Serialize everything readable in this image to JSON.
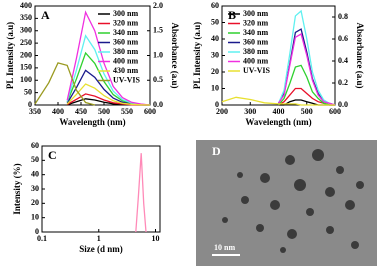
{
  "chart_data": [
    {
      "type": "line",
      "panel_label": "A",
      "xlabel": "Wavelength (nm)",
      "ylabel": "PL Intensity (a.u)",
      "y2label": "Absorbance (a.u)",
      "x": [
        350,
        380,
        400,
        420,
        440,
        460,
        480,
        500,
        520,
        540,
        560,
        580,
        600
      ],
      "xlim": [
        350,
        600
      ],
      "xticks": [
        350,
        400,
        450,
        500,
        550,
        600
      ],
      "ylim": [
        0,
        400
      ],
      "yticks": [
        0,
        50,
        100,
        150,
        200,
        250,
        300,
        350,
        400
      ],
      "y2lim": [
        0,
        2
      ],
      "y2ticks": [
        {
          "value": 0,
          "label": "0.0"
        },
        0.5,
        {
          "value": 1,
          "label": "1.0"
        },
        1.5,
        {
          "value": 2,
          "label": "2.0"
        }
      ],
      "legend": "upper right",
      "series": [
        {
          "name": "300 nm",
          "color": "#000000",
          "values": [
            null,
            null,
            null,
            1,
            13,
            25,
            20,
            11,
            5,
            2,
            1,
            0,
            0
          ]
        },
        {
          "name": "320 nm",
          "color": "#e8102a",
          "values": [
            null,
            null,
            null,
            2,
            23,
            45,
            36,
            20,
            9,
            4,
            1,
            0,
            0
          ]
        },
        {
          "name": "340 nm",
          "color": "#2fd12f",
          "values": [
            null,
            null,
            null,
            11,
            105,
            210,
            168,
            95,
            42,
            17,
            6,
            2,
            0
          ]
        },
        {
          "name": "360 nm",
          "color": "#1a1a8c",
          "values": [
            null,
            null,
            null,
            7,
            70,
            140,
            112,
            63,
            28,
            11,
            4,
            1,
            0
          ]
        },
        {
          "name": "380 nm",
          "color": "#5ff0f0",
          "values": [
            null,
            null,
            null,
            14,
            140,
            280,
            224,
            126,
            56,
            22,
            8,
            3,
            0
          ]
        },
        {
          "name": "400 nm",
          "color": "#f030e0",
          "values": [
            null,
            null,
            null,
            19,
            188,
            375,
            300,
            169,
            75,
            30,
            11,
            4,
            0
          ]
        },
        {
          "name": "430 nm",
          "color": "#e8e030",
          "values": [
            null,
            null,
            null,
            4,
            43,
            85,
            68,
            38,
            17,
            7,
            3,
            1,
            0
          ]
        },
        {
          "name": "UV-VIS",
          "color": "#9a9a20",
          "axis": "y2",
          "values": [
            0.02,
            0.45,
            0.85,
            0.8,
            0.3,
            0.05,
            0,
            null,
            null,
            null,
            null,
            null,
            null
          ]
        }
      ]
    },
    {
      "type": "line",
      "panel_label": "B",
      "xlabel": "Wavelength (nm)",
      "ylabel": "PL Intensity (a.u)",
      "y2label": "Absorbance (a.u)",
      "x": [
        200,
        250,
        300,
        350,
        400,
        420,
        440,
        460,
        480,
        500,
        520,
        540,
        560,
        580,
        600
      ],
      "xlim": [
        200,
        600
      ],
      "xticks": [
        200,
        300,
        400,
        500,
        600
      ],
      "ylim": [
        0,
        60
      ],
      "yticks": [
        0,
        10,
        20,
        30,
        40,
        50,
        60
      ],
      "y2lim": [
        0,
        0.9
      ],
      "y2ticks": [
        {
          "value": 0,
          "label": "0.0"
        },
        0.2,
        0.4,
        0.6,
        0.8
      ],
      "legend": "upper left",
      "series": [
        {
          "name": "300 nm",
          "color": "#000000",
          "values": [
            null,
            null,
            null,
            null,
            0,
            0,
            2,
            3,
            3,
            2,
            1,
            0,
            0,
            0,
            0
          ]
        },
        {
          "name": "320 nm",
          "color": "#e8102a",
          "values": [
            null,
            null,
            null,
            null,
            0,
            2,
            6,
            10,
            10,
            7,
            4,
            2,
            1,
            0,
            0
          ]
        },
        {
          "name": "340 nm",
          "color": "#2fd12f",
          "values": [
            null,
            null,
            null,
            null,
            0,
            4,
            13,
            23,
            24,
            17,
            8,
            4,
            1,
            0,
            0
          ]
        },
        {
          "name": "360 nm",
          "color": "#1a1a8c",
          "values": [
            null,
            null,
            null,
            null,
            1,
            7,
            25,
            44,
            46,
            32,
            16,
            7,
            2,
            1,
            0
          ]
        },
        {
          "name": "380 nm",
          "color": "#5ff0f0",
          "values": [
            null,
            null,
            null,
            null,
            1,
            9,
            31,
            54,
            57,
            40,
            20,
            9,
            3,
            1,
            0
          ]
        },
        {
          "name": "400 nm",
          "color": "#f030e0",
          "values": [
            null,
            null,
            null,
            null,
            1,
            6,
            24,
            41,
            43,
            30,
            15,
            6,
            2,
            1,
            0
          ]
        },
        {
          "name": "UV-VIS",
          "color": "#e8e030",
          "axis": "y2",
          "values": [
            0.03,
            0.07,
            0.05,
            0.02,
            0.01,
            0.01,
            0.01,
            0.01,
            0,
            0,
            0,
            0,
            0,
            0,
            0
          ]
        }
      ]
    },
    {
      "type": "line",
      "panel_label": "C",
      "xlabel": "Size (d nm)",
      "ylabel": "Intensity (%)",
      "xscale": "log",
      "x": [
        4.5,
        5,
        5.6,
        6.2,
        6.8
      ],
      "xlim": [
        0.1,
        12
      ],
      "xticks": [
        0.1,
        1,
        10
      ],
      "ylim": [
        0,
        60
      ],
      "yticks": [
        0,
        10,
        20,
        30,
        40,
        50,
        60
      ],
      "series": [
        {
          "color": "#ff8ab8",
          "values": [
            0,
            25,
            55,
            20,
            0
          ]
        }
      ]
    }
  ],
  "image_panel": {
    "label": "D",
    "scale_bar": "10 nm"
  }
}
